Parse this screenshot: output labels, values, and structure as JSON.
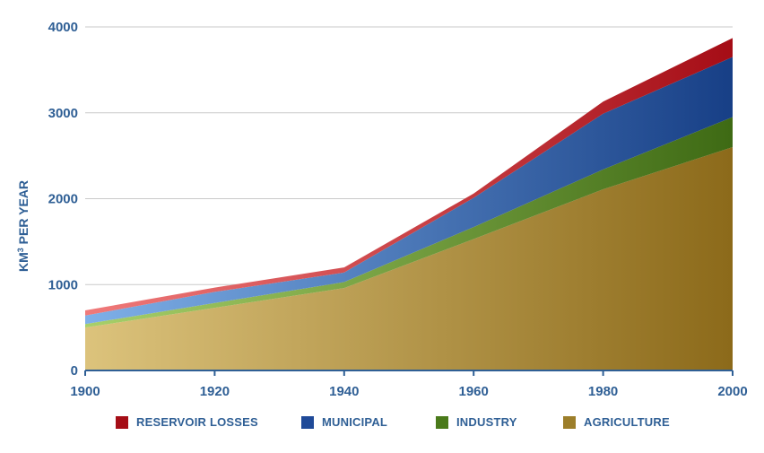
{
  "chart_data": {
    "type": "area",
    "stacked": true,
    "x": [
      1900,
      1920,
      1940,
      1960,
      1980,
      2000
    ],
    "ylabel_main": "KM",
    "ylabel_sup": "3",
    "ylabel_rest": " PER YEAR",
    "xlim": [
      1900,
      2000
    ],
    "ylim": [
      0,
      4000
    ],
    "x_ticks": [
      "1900",
      "1920",
      "1940",
      "1960",
      "1980",
      "2000"
    ],
    "y_ticks": [
      "0",
      "1000",
      "2000",
      "3000",
      "4000"
    ],
    "grid": true,
    "legend_position": "bottom",
    "series": [
      {
        "name": "AGRICULTURE",
        "color": "#a58a35",
        "values": [
          500,
          730,
          960,
          1530,
          2110,
          2600
        ]
      },
      {
        "name": "INDUSTRY",
        "color": "#4f7f1f",
        "values": [
          40,
          55,
          70,
          140,
          230,
          350
        ]
      },
      {
        "name": "MUNICIPAL",
        "color": "#1f53a1",
        "values": [
          100,
          130,
          110,
          340,
          650,
          700
        ]
      },
      {
        "name": "RESERVOIR LOSSES",
        "color": "#b0101a",
        "values": [
          60,
          50,
          60,
          50,
          140,
          220
        ]
      }
    ]
  }
}
